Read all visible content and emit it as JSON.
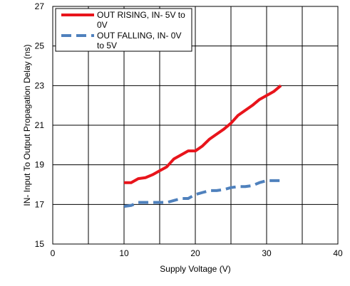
{
  "chart_data": {
    "type": "line",
    "title": "",
    "xlabel": "Supply Voltage (V)",
    "ylabel": "IN- Input To Output Propagation Delay (ns)",
    "xlim": [
      0,
      40
    ],
    "ylim": [
      15,
      27
    ],
    "x_ticks": [
      "0",
      "10",
      "20",
      "30",
      "40"
    ],
    "y_ticks": [
      "15",
      "17",
      "19",
      "21",
      "23",
      "25",
      "27"
    ],
    "grid": true,
    "legend_position": "top-left",
    "series": [
      {
        "name_line1": "OUT RISING, IN- 5V to",
        "name_line2": "0V",
        "color": "#e8141b",
        "style": "solid",
        "x": [
          10,
          11,
          12,
          13,
          14,
          15,
          16,
          17,
          18,
          19,
          20,
          21,
          22,
          23,
          24,
          25,
          26,
          27,
          28,
          29,
          30,
          31,
          32
        ],
        "y": [
          18.1,
          18.1,
          18.3,
          18.35,
          18.5,
          18.7,
          18.9,
          19.3,
          19.5,
          19.7,
          19.7,
          19.95,
          20.3,
          20.55,
          20.8,
          21.1,
          21.5,
          21.75,
          22.0,
          22.3,
          22.5,
          22.7,
          23.0
        ]
      },
      {
        "name_line1": "OUT FALLING, IN- 0V",
        "name_line2": "to 5V",
        "color": "#4f81bd",
        "style": "dashed",
        "x": [
          10,
          11,
          12,
          13,
          14,
          15,
          16,
          17,
          18,
          19,
          20,
          21,
          22,
          23,
          24,
          25,
          26,
          27,
          28,
          29,
          30,
          31,
          32
        ],
        "y": [
          16.9,
          16.95,
          17.1,
          17.1,
          17.1,
          17.1,
          17.1,
          17.2,
          17.3,
          17.3,
          17.5,
          17.6,
          17.7,
          17.7,
          17.75,
          17.85,
          17.9,
          17.9,
          17.95,
          18.1,
          18.2,
          18.2,
          18.2
        ]
      }
    ]
  }
}
